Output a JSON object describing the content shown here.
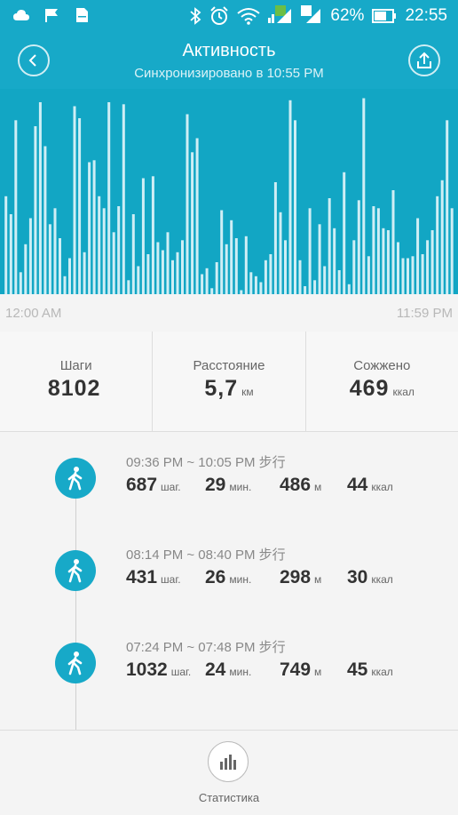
{
  "status_bar": {
    "battery": "62%",
    "time": "22:55",
    "icons": [
      "cloud-icon",
      "flag-icon",
      "sd-card-icon",
      "bluetooth-icon",
      "alarm-icon",
      "wifi-icon",
      "sim1-signal-icon",
      "sim2-signal-icon",
      "battery-icon"
    ]
  },
  "header": {
    "title": "Активность",
    "subtitle": "Синхронизировано в 10:55 PM"
  },
  "chart_data": {
    "type": "bar",
    "x_start": "12:00 AM",
    "x_end": "11:59 PM",
    "values": [
      0.49,
      0.4,
      0.87,
      0.11,
      0.25,
      0.38,
      0.84,
      0.96,
      0.74,
      0.35,
      0.43,
      0.28,
      0.09,
      0.18,
      0.94,
      0.88,
      0.21,
      0.66,
      0.67,
      0.49,
      0.43,
      0.96,
      0.31,
      0.44,
      0.95,
      0.07,
      0.4,
      0.14,
      0.58,
      0.2,
      0.59,
      0.26,
      0.22,
      0.31,
      0.17,
      0.21,
      0.27,
      0.9,
      0.71,
      0.78,
      0.1,
      0.13,
      0.03,
      0.16,
      0.42,
      0.25,
      0.37,
      0.28,
      0.02,
      0.29,
      0.11,
      0.09,
      0.06,
      0.17,
      0.2,
      0.56,
      0.41,
      0.27,
      0.97,
      0.87,
      0.17,
      0.04,
      0.43,
      0.07,
      0.35,
      0.14,
      0.48,
      0.33,
      0.12,
      0.61,
      0.05,
      0.27,
      0.47,
      0.98,
      0.19,
      0.44,
      0.43,
      0.33,
      0.32,
      0.52,
      0.26,
      0.18,
      0.18,
      0.19,
      0.38,
      0.2,
      0.27,
      0.32,
      0.49,
      0.57,
      0.87,
      0.43
    ],
    "ylim": [
      0,
      1
    ],
    "color": "#cfeef5",
    "background": "#12a6c4"
  },
  "axis": {
    "start": "12:00 AM",
    "end": "11:59 PM"
  },
  "summary": [
    {
      "label": "Шаги",
      "value": "8102",
      "unit": ""
    },
    {
      "label": "Расстояние",
      "value": "5,7",
      "unit": "км"
    },
    {
      "label": "Сожжено",
      "value": "469",
      "unit": "ккал"
    }
  ],
  "activities": [
    {
      "time": "09:36 PM ~ 10:05 PM 步行",
      "steps": "687",
      "steps_unit": "шаг.",
      "minutes": "29",
      "minutes_unit": "мин.",
      "meters": "486",
      "meters_unit": "м",
      "kcal": "44",
      "kcal_unit": "ккал"
    },
    {
      "time": "08:14 PM ~ 08:40 PM 步行",
      "steps": "431",
      "steps_unit": "шаг.",
      "minutes": "26",
      "minutes_unit": "мин.",
      "meters": "298",
      "meters_unit": "м",
      "kcal": "30",
      "kcal_unit": "ккал"
    },
    {
      "time": "07:24 PM ~ 07:48 PM 步行",
      "steps": "1032",
      "steps_unit": "шаг.",
      "minutes": "24",
      "minutes_unit": "мин.",
      "meters": "749",
      "meters_unit": "м",
      "kcal": "45",
      "kcal_unit": "ккал"
    }
  ],
  "footer": {
    "stats_label": "Статистика"
  },
  "colors": {
    "accent": "#17a9c8",
    "chart_bg": "#12a6c4",
    "bar": "#cfeef5"
  }
}
